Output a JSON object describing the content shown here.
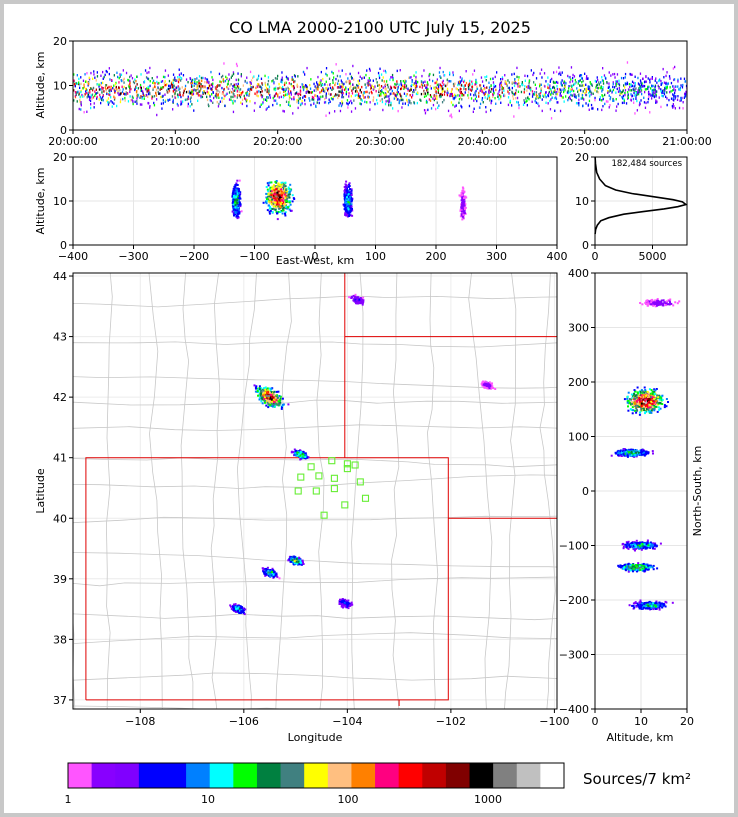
{
  "title": "CO LMA 2000-2100 UTC July 15, 2025",
  "colorbar": {
    "label": "Sources/7 km²",
    "ticks": [
      "1",
      "10",
      "100",
      "1000"
    ],
    "colors": [
      "#ff55ff",
      "#8800ff",
      "#8000ff",
      "#0000ff",
      "#0000ff",
      "#0080ff",
      "#00ffff",
      "#00ff00",
      "#008040",
      "#408080",
      "#ffff00",
      "#ffbf80",
      "#ff8000",
      "#ff0080",
      "#ff0000",
      "#c00000",
      "#800000",
      "#000000",
      "#808080",
      "#c0c0c0",
      "#ffffff"
    ]
  },
  "chart_data": [
    {
      "type": "heatmap",
      "panel": "altitude-vs-time",
      "ylabel": "Altitude, km",
      "x_ticks": [
        "20:00:00",
        "20:10:00",
        "20:20:00",
        "20:30:00",
        "20:40:00",
        "20:50:00",
        "21:00:00"
      ],
      "y_ticks": [
        "0",
        "10",
        "20"
      ],
      "ylim": [
        0,
        20
      ],
      "density_core_altitude_km": 9
    },
    {
      "type": "heatmap",
      "panel": "altitude-vs-east-west",
      "xlabel": "East-West, km",
      "ylabel": "Altitude, km",
      "xlim": [
        -400,
        400
      ],
      "ylim": [
        0,
        20
      ],
      "x_ticks": [
        "−400",
        "−300",
        "−200",
        "−100",
        "0",
        "100",
        "200",
        "300",
        "400"
      ],
      "y_ticks": [
        "0",
        "10",
        "20"
      ],
      "clusters": [
        {
          "x": -130,
          "alt": 10,
          "intensity": 0.5
        },
        {
          "x": -60,
          "alt": 11,
          "intensity": 1.0
        },
        {
          "x": 55,
          "alt": 10,
          "intensity": 0.45
        },
        {
          "x": 245,
          "alt": 9,
          "intensity": 0.1
        }
      ]
    },
    {
      "type": "line",
      "panel": "altitude-histogram",
      "annotation": "182,484 sources",
      "xlim": [
        0,
        8000
      ],
      "ylim": [
        0,
        20
      ],
      "x_ticks": [
        "0",
        "5000"
      ],
      "y_ticks": [
        "0",
        "10",
        "20"
      ],
      "x": [
        10,
        50,
        200,
        500,
        1200,
        2500,
        4200,
        6000,
        7200,
        7900,
        7600,
        6800,
        5000,
        3200,
        1800,
        900,
        400,
        150,
        40,
        10
      ],
      "y": [
        2.5,
        3.5,
        4.5,
        5.5,
        6.2,
        7.0,
        7.6,
        8.2,
        8.7,
        9.2,
        9.8,
        10.3,
        11.0,
        11.7,
        12.5,
        13.5,
        15.0,
        16.5,
        18.5,
        20
      ]
    },
    {
      "type": "heatmap",
      "panel": "plan-view-map",
      "xlabel": "Longitude",
      "ylabel": "Latitude",
      "xlim": [
        -109.3,
        -99.95
      ],
      "ylim": [
        36.85,
        44.05
      ],
      "x_ticks": [
        "−108",
        "−106",
        "−104",
        "−102",
        "−100"
      ],
      "y_ticks": [
        "37",
        "38",
        "39",
        "40",
        "41",
        "42",
        "43",
        "44"
      ],
      "clusters": [
        {
          "lon": -105.5,
          "lat": 42.0,
          "intensity": 1.0
        },
        {
          "lon": -104.9,
          "lat": 41.05,
          "intensity": 0.55
        },
        {
          "lon": -105.0,
          "lat": 39.3,
          "intensity": 0.6
        },
        {
          "lon": -105.5,
          "lat": 39.1,
          "intensity": 0.5
        },
        {
          "lon": -106.1,
          "lat": 38.5,
          "intensity": 0.45
        },
        {
          "lon": -104.05,
          "lat": 38.6,
          "intensity": 0.3
        },
        {
          "lon": -103.8,
          "lat": 43.6,
          "intensity": 0.2
        },
        {
          "lon": -101.3,
          "lat": 42.2,
          "intensity": 0.1
        }
      ],
      "stations": [
        {
          "lon": -104.3,
          "lat": 40.95
        },
        {
          "lon": -104.0,
          "lat": 40.9
        },
        {
          "lon": -103.85,
          "lat": 40.88
        },
        {
          "lon": -104.7,
          "lat": 40.85
        },
        {
          "lon": -104.0,
          "lat": 40.82
        },
        {
          "lon": -104.9,
          "lat": 40.68
        },
        {
          "lon": -104.55,
          "lat": 40.7
        },
        {
          "lon": -104.25,
          "lat": 40.66
        },
        {
          "lon": -103.75,
          "lat": 40.6
        },
        {
          "lon": -104.95,
          "lat": 40.45
        },
        {
          "lon": -104.6,
          "lat": 40.45
        },
        {
          "lon": -104.25,
          "lat": 40.49
        },
        {
          "lon": -103.65,
          "lat": 40.33
        },
        {
          "lon": -104.05,
          "lat": 40.22
        },
        {
          "lon": -104.45,
          "lat": 40.05
        }
      ]
    },
    {
      "type": "heatmap",
      "panel": "north-south-vs-altitude",
      "xlabel": "Altitude, km",
      "ylabel": "North-South, km",
      "xlim": [
        0,
        20
      ],
      "ylim": [
        -400,
        400
      ],
      "x_ticks": [
        "0",
        "10",
        "20"
      ],
      "y_ticks": [
        "400",
        "300",
        "200",
        "100",
        "0",
        "−100",
        "−200",
        "−300",
        "−400"
      ],
      "clusters": [
        {
          "ns": 165,
          "alt": 11,
          "intensity": 1.0
        },
        {
          "ns": 70,
          "alt": 8,
          "intensity": 0.5
        },
        {
          "ns": -100,
          "alt": 10,
          "intensity": 0.45
        },
        {
          "ns": -140,
          "alt": 9,
          "intensity": 0.6
        },
        {
          "ns": -210,
          "alt": 12,
          "intensity": 0.45
        },
        {
          "ns": 345,
          "alt": 14,
          "intensity": 0.1
        }
      ]
    }
  ]
}
